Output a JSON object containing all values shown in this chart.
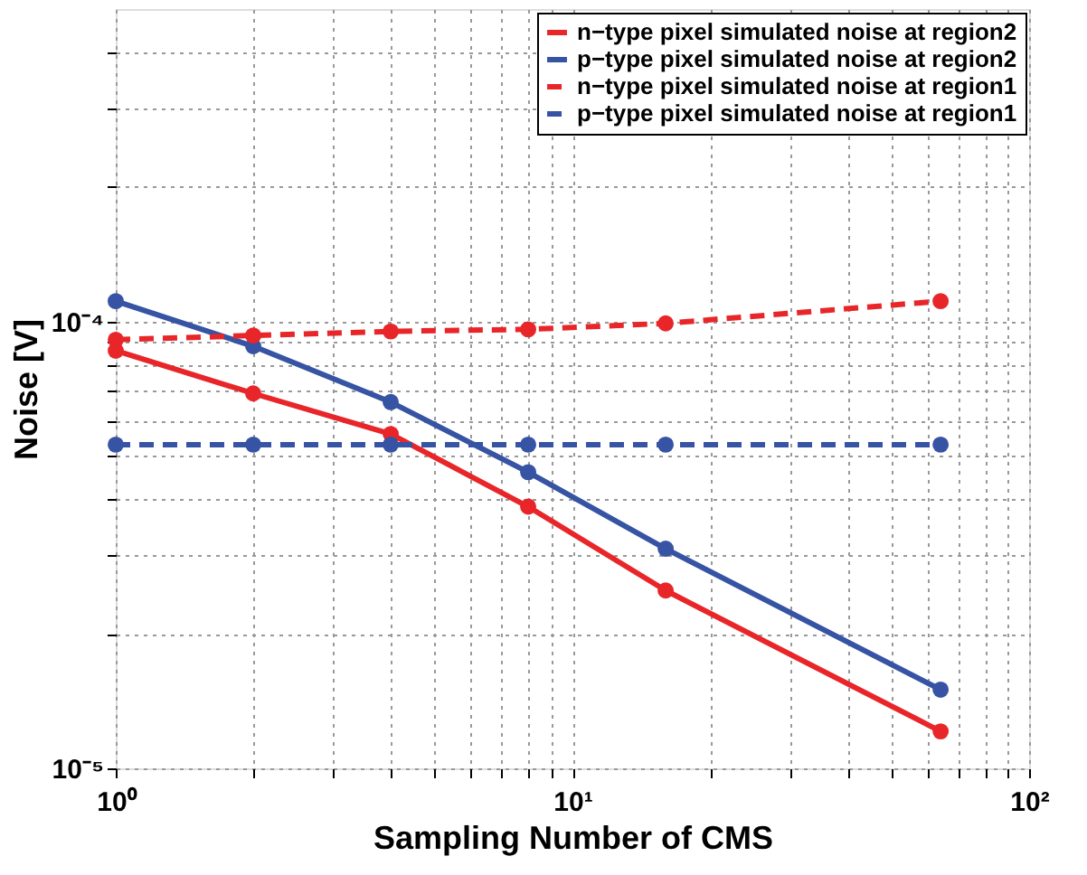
{
  "chart_data": {
    "type": "line",
    "xlabel": "Sampling Number of CMS",
    "ylabel": "Noise [V]",
    "log": "xy",
    "grid": true,
    "legend": "top right",
    "marker": "circle",
    "x": [
      1,
      2,
      4,
      8,
      16,
      64
    ],
    "xlim": [
      1,
      100
    ],
    "xticks": [
      {
        "value": 1,
        "label": "10⁰"
      },
      {
        "value": 2,
        "label": null
      },
      {
        "value": 3,
        "label": null
      },
      {
        "value": 4,
        "label": null
      },
      {
        "value": 5,
        "label": null
      },
      {
        "value": 6,
        "label": null
      },
      {
        "value": 7,
        "label": null
      },
      {
        "value": 8,
        "label": null
      },
      {
        "value": 9,
        "label": null
      },
      {
        "value": 10,
        "label": "10¹"
      },
      {
        "value": 20,
        "label": null
      },
      {
        "value": 30,
        "label": null
      },
      {
        "value": 40,
        "label": null
      },
      {
        "value": 50,
        "label": null
      },
      {
        "value": 60,
        "label": null
      },
      {
        "value": 70,
        "label": null
      },
      {
        "value": 80,
        "label": null
      },
      {
        "value": 90,
        "label": null
      },
      {
        "value": 100,
        "label": "10²"
      }
    ],
    "ylim": [
      1e-05,
      0.0005
    ],
    "yticks": [
      {
        "value": 1e-05,
        "label": "10⁻⁵"
      },
      {
        "value": 2e-05,
        "label": null
      },
      {
        "value": 3e-05,
        "label": null
      },
      {
        "value": 4e-05,
        "label": null
      },
      {
        "value": 5e-05,
        "label": null
      },
      {
        "value": 6e-05,
        "label": null
      },
      {
        "value": 7e-05,
        "label": null
      },
      {
        "value": 8e-05,
        "label": null
      },
      {
        "value": 9e-05,
        "label": null
      },
      {
        "value": 0.0001,
        "label": "10⁻⁴"
      },
      {
        "value": 0.0002,
        "label": null
      },
      {
        "value": 0.0003,
        "label": null
      },
      {
        "value": 0.0004,
        "label": null
      }
    ],
    "series": [
      {
        "name": "n−type pixel simulated noise at region2",
        "color": "#e8262a",
        "line_style": "solid",
        "values": [
          8.6e-05,
          6.9e-05,
          5.6e-05,
          3.85e-05,
          2.5e-05,
          1.21e-05
        ]
      },
      {
        "name": "p−type pixel simulated noise at region2",
        "color": "#3653a4",
        "line_style": "solid",
        "values": [
          0.000111,
          8.8e-05,
          6.6e-05,
          4.6e-05,
          3.1e-05,
          1.5e-05
        ]
      },
      {
        "name": "n−type pixel simulated noise at region1",
        "color": "#e8262a",
        "line_style": "dashed",
        "values": [
          9.1e-05,
          9.3e-05,
          9.5e-05,
          9.6e-05,
          9.9e-05,
          0.000111
        ]
      },
      {
        "name": "p−type pixel simulated noise at region1",
        "color": "#3653a4",
        "line_style": "dashed",
        "values": [
          5.3e-05,
          5.3e-05,
          5.3e-05,
          5.3e-05,
          5.3e-05,
          5.3e-05
        ]
      }
    ]
  }
}
